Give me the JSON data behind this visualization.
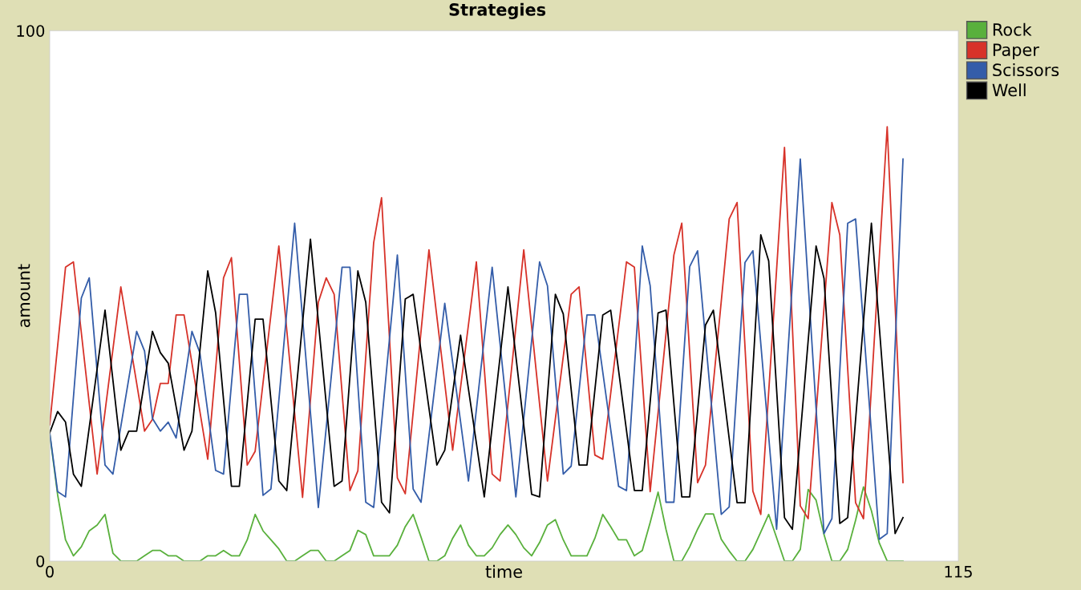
{
  "chart_data": {
    "type": "line",
    "title": "Strategies",
    "xlabel": "time",
    "ylabel": "amount",
    "xlim": [
      0,
      115
    ],
    "ylim": [
      0,
      100
    ],
    "xticks": [
      0,
      115
    ],
    "yticks": [
      0,
      100
    ],
    "grid": false,
    "legend": "top right",
    "marker": "none",
    "line_style": "solid",
    "series": [
      {
        "name": "Rock",
        "color": "#59b03c",
        "x": [
          0,
          1,
          2,
          3,
          4,
          5,
          6,
          7,
          8,
          9,
          10,
          11,
          12,
          13,
          14,
          15,
          16,
          17,
          18,
          19,
          20,
          21,
          22,
          23,
          24,
          25,
          26,
          27,
          28,
          29,
          30,
          31,
          32,
          33,
          34,
          35,
          36,
          37,
          38,
          39,
          40,
          41,
          42,
          43,
          44,
          45,
          46,
          47,
          48,
          49,
          50,
          51,
          52,
          53,
          54,
          55,
          56,
          57,
          58,
          59,
          60,
          61,
          62,
          63,
          64,
          65,
          66,
          67,
          68,
          69,
          70,
          71,
          72,
          73,
          74,
          75,
          76,
          77,
          78,
          79,
          80,
          81,
          82,
          83,
          84,
          85,
          86,
          87,
          88,
          89,
          90,
          91,
          92,
          93,
          94,
          95,
          96,
          97,
          98,
          99,
          100,
          101,
          102,
          103,
          104,
          105,
          106,
          107,
          108
        ],
        "values": [
          24,
          12.5,
          4,
          1,
          2.7,
          5.7,
          6.8,
          8.8,
          1.5,
          0,
          0,
          0,
          1,
          2,
          2,
          1,
          1,
          0,
          0,
          0,
          1,
          1,
          2,
          1,
          1,
          4,
          8.8,
          5.7,
          4,
          2.3,
          0,
          0,
          1,
          2,
          2,
          0,
          0,
          1,
          2,
          5.8,
          5,
          1,
          1,
          1,
          3,
          6.5,
          8.8,
          4.5,
          0,
          0,
          1,
          4.3,
          6.8,
          3,
          1,
          1,
          2.5,
          5,
          6.8,
          5,
          2.5,
          1,
          3.5,
          6.8,
          7.8,
          4,
          1,
          1,
          1,
          4.3,
          8.8,
          6.5,
          4,
          4,
          1,
          2,
          7.3,
          13,
          6,
          0,
          0,
          2.7,
          6,
          8.9,
          8.9,
          4.1,
          1.9,
          0,
          0,
          2.2,
          5.5,
          8.8,
          4.4,
          0,
          0,
          2.2,
          13.5,
          11.5,
          5,
          0,
          0,
          2.2,
          7.7,
          14,
          9.5,
          3.4,
          0,
          0,
          0
        ]
      },
      {
        "name": "Paper",
        "color": "#d73229",
        "x": [
          0,
          2,
          3,
          6,
          9,
          12,
          13,
          14,
          15,
          16,
          17,
          20,
          22,
          23,
          25,
          26,
          29,
          32,
          34,
          35,
          36,
          38,
          39,
          41,
          42,
          44,
          45,
          48,
          51,
          54,
          56,
          57,
          60,
          63,
          66,
          67,
          69,
          70,
          73,
          74,
          76,
          79,
          80,
          82,
          83,
          86,
          87,
          89,
          90,
          93,
          95,
          96,
          99,
          100,
          102,
          103,
          106,
          108
        ],
        "values": [
          25.7,
          55.4,
          56.4,
          16.4,
          51.7,
          24.5,
          26.7,
          33.5,
          33.5,
          46.4,
          46.4,
          19.2,
          53.4,
          57.2,
          18.1,
          20.7,
          59.4,
          12,
          48.8,
          53.4,
          50.3,
          13.3,
          17,
          60,
          68.5,
          15.7,
          12.7,
          58.7,
          20.9,
          56.4,
          16.4,
          15.1,
          58.7,
          15.1,
          50.3,
          51.7,
          20,
          19.2,
          56.4,
          55.4,
          13.1,
          57.7,
          63.7,
          14.8,
          18.1,
          64.5,
          67.6,
          13.2,
          8.8,
          78,
          10.4,
          8,
          67.6,
          61.5,
          11,
          8,
          81.9,
          14.8
        ]
      },
      {
        "name": "Scissors",
        "color": "#345da9",
        "x": [
          0,
          1,
          2,
          4,
          5,
          7,
          8,
          11,
          12,
          13,
          14,
          15,
          16,
          18,
          19,
          21,
          22,
          24,
          25,
          27,
          28,
          31,
          34,
          37,
          38,
          40,
          41,
          44,
          46,
          47,
          50,
          53,
          56,
          59,
          62,
          63,
          65,
          66,
          68,
          69,
          72,
          73,
          75,
          76,
          78,
          79,
          81,
          82,
          85,
          86,
          88,
          89,
          92,
          95,
          98,
          99,
          101,
          102,
          105,
          106,
          108
        ],
        "values": [
          24.2,
          13.1,
          12.1,
          49.6,
          53.4,
          18.1,
          16.4,
          43.3,
          39.6,
          26.9,
          24.5,
          26.2,
          23.2,
          43.3,
          39.3,
          17.1,
          16.4,
          50.3,
          50.3,
          12.4,
          13.6,
          63.7,
          10.1,
          55.4,
          55.4,
          11.1,
          10.1,
          57.7,
          13.6,
          11.1,
          48.6,
          15.1,
          55.4,
          12.1,
          56.4,
          51.9,
          16.4,
          17.9,
          46.4,
          46.4,
          14.1,
          13.3,
          59.4,
          51.9,
          11.1,
          11.1,
          55.5,
          58.5,
          8.8,
          10.2,
          56.3,
          58.5,
          6,
          75.8,
          5.2,
          8,
          63.7,
          64.5,
          4.1,
          5.2,
          75.8
        ]
      },
      {
        "name": "Well",
        "color": "#000000",
        "x": [
          0,
          1,
          2,
          3,
          4,
          7,
          9,
          10,
          11,
          13,
          14,
          15,
          17,
          18,
          20,
          21,
          23,
          24,
          26,
          27,
          29,
          30,
          33,
          36,
          37,
          39,
          40,
          42,
          43,
          45,
          46,
          49,
          50,
          52,
          55,
          58,
          61,
          62,
          64,
          65,
          67,
          68,
          70,
          71,
          74,
          75,
          77,
          78,
          80,
          81,
          83,
          84,
          87,
          88,
          90,
          91,
          93,
          94,
          97,
          98,
          100,
          101,
          104,
          107,
          108
        ],
        "values": [
          24.2,
          28.2,
          26.2,
          16.4,
          14.1,
          47.3,
          20.9,
          24.5,
          24.5,
          43.3,
          39.3,
          37.3,
          20.9,
          24.5,
          54.7,
          46.8,
          14.1,
          14.1,
          45.6,
          45.6,
          15.1,
          13.3,
          60.7,
          14.1,
          15.1,
          54.7,
          48.8,
          11.1,
          9.1,
          49.4,
          50.3,
          18.1,
          20.9,
          42.6,
          12.1,
          51.7,
          12.6,
          12.1,
          50.3,
          46.6,
          18.1,
          18.1,
          46.4,
          47.3,
          13.3,
          13.3,
          46.8,
          47.3,
          12.1,
          12.1,
          44.5,
          47.3,
          11,
          11,
          61.5,
          56.6,
          8.2,
          6,
          59.4,
          53.3,
          7.1,
          8.2,
          63.7,
          5.2,
          8.2
        ]
      }
    ]
  }
}
